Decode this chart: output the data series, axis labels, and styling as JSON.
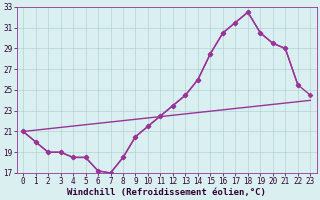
{
  "line1_x": [
    0,
    1,
    2,
    3,
    4,
    5,
    6,
    7,
    8,
    9,
    10,
    11,
    12,
    13,
    14,
    15,
    16,
    17,
    18,
    19,
    20,
    21,
    22
  ],
  "line1_y": [
    21,
    20,
    19,
    19,
    18.5,
    18.5,
    17.2,
    17,
    18.5,
    20.5,
    21.5,
    22.5,
    23.5,
    24.5,
    26,
    28.5,
    30.5,
    31.5,
    32.5,
    30.5,
    29.5,
    29,
    25.5
  ],
  "line2_x": [
    0,
    1,
    2,
    3,
    4,
    5,
    6,
    7,
    8,
    9,
    10,
    11,
    12,
    13,
    14,
    15,
    16,
    17,
    18,
    19,
    20,
    21,
    22,
    23
  ],
  "line2_y": [
    21,
    20,
    19,
    19,
    18.5,
    18.5,
    17.2,
    17,
    18.5,
    20.5,
    21.5,
    22.5,
    23.5,
    24.5,
    26,
    28.5,
    30.5,
    31.5,
    32.5,
    30.5,
    29.5,
    29,
    25.5,
    24.5
  ],
  "line3_x": [
    0,
    23
  ],
  "line3_y": [
    21,
    24
  ],
  "color": "#993399",
  "background": "#daf0f0",
  "grid_color": "#aacccc",
  "xlim": [
    -0.5,
    23.5
  ],
  "ylim": [
    17,
    33
  ],
  "yticks": [
    17,
    19,
    21,
    23,
    25,
    27,
    29,
    31,
    33
  ],
  "xticks": [
    0,
    1,
    2,
    3,
    4,
    5,
    6,
    7,
    8,
    9,
    10,
    11,
    12,
    13,
    14,
    15,
    16,
    17,
    18,
    19,
    20,
    21,
    22,
    23
  ],
  "xlabel": "Windchill (Refroidissement éolien,°C)",
  "marker": "D",
  "markersize": 2.5,
  "linewidth": 1.0,
  "xlabel_fontsize": 6.5,
  "tick_fontsize": 5.5
}
